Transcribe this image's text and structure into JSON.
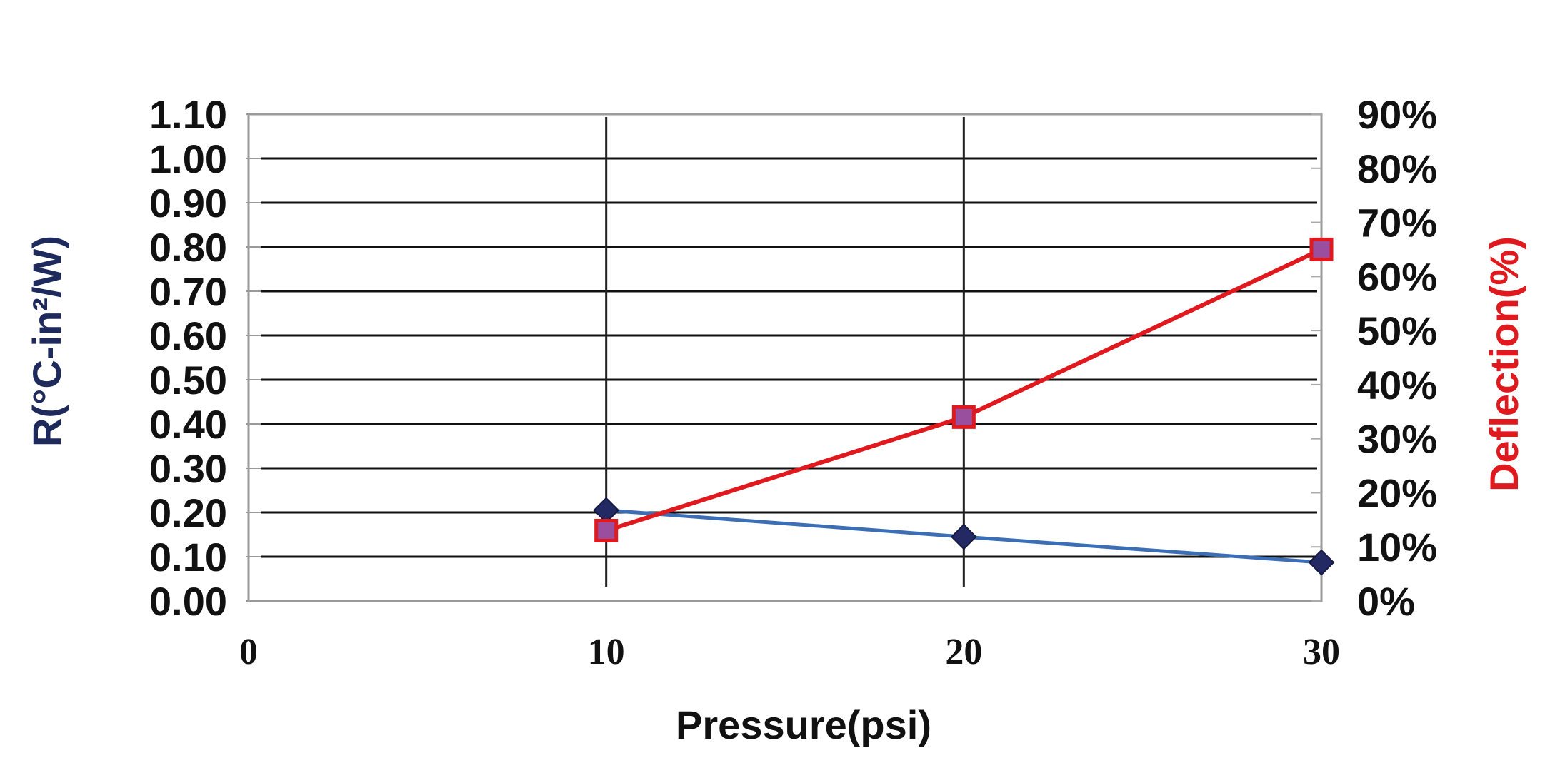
{
  "chart_data": {
    "type": "line",
    "title": "",
    "xlabel": "Pressure(psi)",
    "ylabel_left": "R(°C-in²/W)",
    "ylabel_right": "Deflection(%)",
    "x_ticks": [
      "0",
      "10",
      "20",
      "30"
    ],
    "xlim": [
      0,
      30
    ],
    "left_axis": {
      "ylim": [
        0,
        1.1
      ],
      "ticks": [
        "0.00",
        "0.10",
        "0.20",
        "0.30",
        "0.40",
        "0.50",
        "0.60",
        "0.70",
        "0.80",
        "0.90",
        "1.00",
        "1.10"
      ],
      "color": "#1f2a5c"
    },
    "right_axis": {
      "ylim": [
        0,
        90
      ],
      "ticks": [
        "0%",
        "10%",
        "20%",
        "30%",
        "40%",
        "50%",
        "60%",
        "70%",
        "80%",
        "90%"
      ],
      "color": "#e0191f"
    },
    "grid": true,
    "series": [
      {
        "axis": "left",
        "marker": "diamond",
        "line_color": "#3b6eb5",
        "marker_color": "#232a63",
        "points": [
          {
            "x": 10,
            "y": 0.205
          },
          {
            "x": 20,
            "y": 0.145
          },
          {
            "x": 30,
            "y": 0.087
          }
        ]
      },
      {
        "axis": "right",
        "marker": "square",
        "line_color": "#e0191f",
        "marker_color": "#9a4e9e",
        "marker_edge": "#e0191f",
        "points": [
          {
            "x": 10,
            "y": 13
          },
          {
            "x": 20,
            "y": 34
          },
          {
            "x": 30,
            "y": 65
          }
        ]
      }
    ]
  }
}
